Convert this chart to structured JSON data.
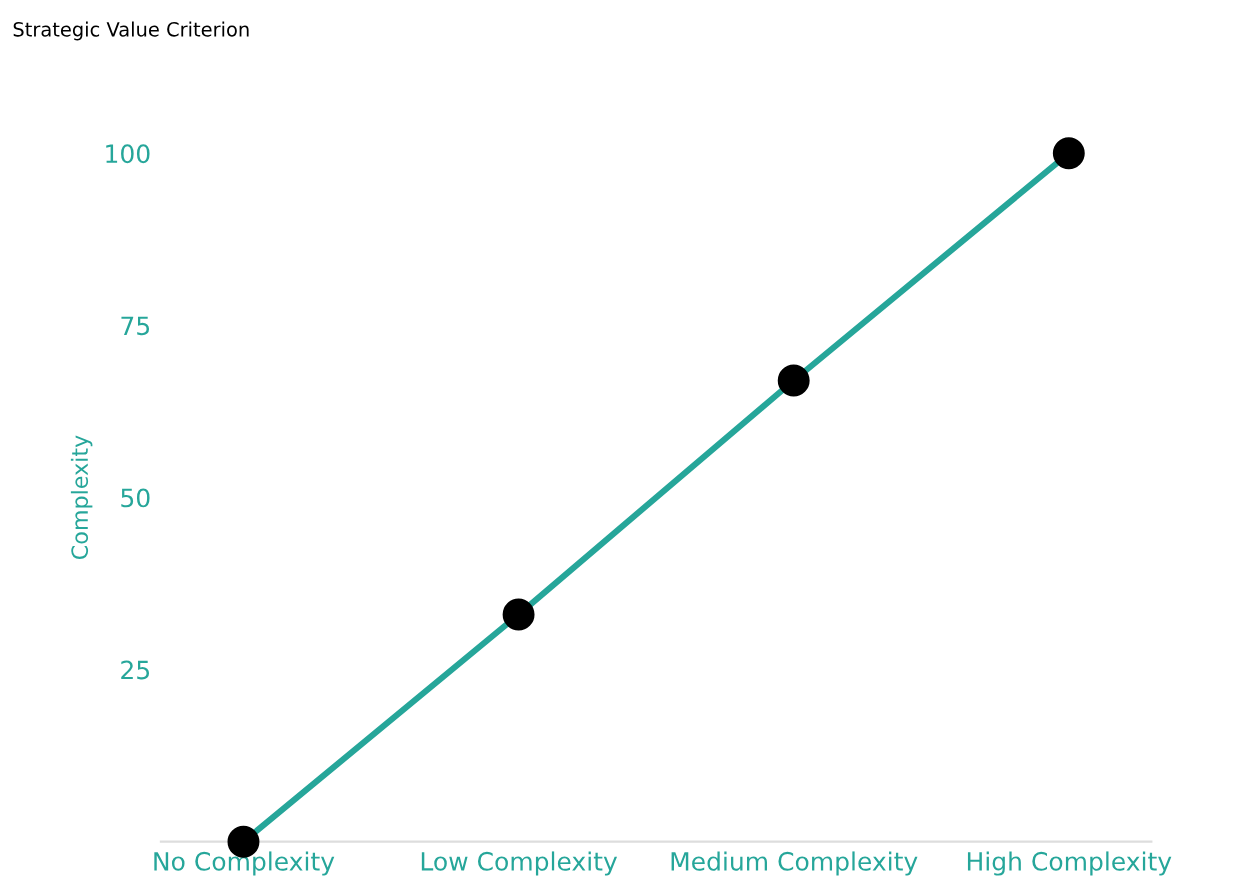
{
  "chart_data": {
    "type": "line",
    "title": "Strategic Value Criterion",
    "ylabel": "Complexity",
    "categories": [
      "No Complexity",
      "Low Complexity",
      "Medium Complexity",
      "High Complexity"
    ],
    "series": [
      {
        "color": "#26a69a",
        "colors": [
          "#000000",
          "#000000",
          "#000000",
          "#000000"
        ],
        "values": [
          0,
          33,
          67,
          100
        ]
      }
    ],
    "ylim": [
      0,
      100
    ],
    "yticks": [
      25,
      50,
      75,
      100
    ],
    "grid": false,
    "marker": "circle",
    "line_style": "solid"
  }
}
